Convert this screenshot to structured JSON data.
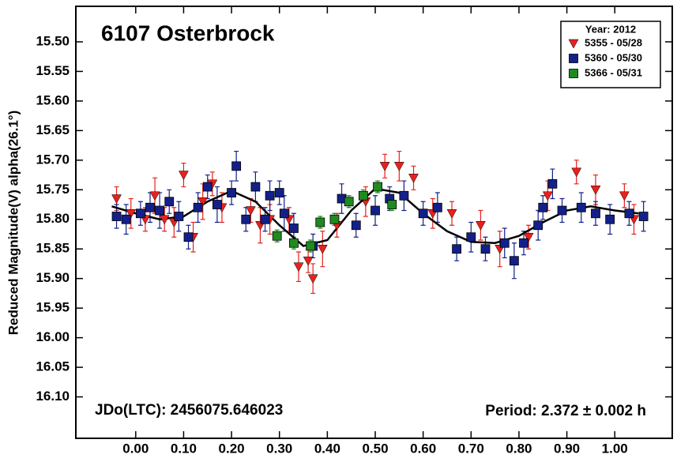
{
  "chart_data": {
    "type": "scatter",
    "title": "6107 Osterbrock",
    "y_label": "Reduced Magnitude(V) alpha(26.1°)",
    "annotations": [
      "JDo(LTC): 2456075.646023",
      "Period: 2.372 ± 0.002 h"
    ],
    "legend_title": "Year: 2012",
    "legend_position": "upper right",
    "xlim": [
      -0.125,
      1.12
    ],
    "ylim": [
      15.44,
      16.17
    ],
    "y_inverted": true,
    "xticks": [
      {
        "value": 0,
        "label": "0.00"
      },
      {
        "value": 0.1,
        "label": "0.10"
      },
      {
        "value": 0.2,
        "label": "0.20"
      },
      {
        "value": 0.3,
        "label": "0.30"
      },
      {
        "value": 0.4,
        "label": "0.40"
      },
      {
        "value": 0.5,
        "label": "0.50"
      },
      {
        "value": 0.6,
        "label": "0.60"
      },
      {
        "value": 0.7,
        "label": "0.70"
      },
      {
        "value": 0.8,
        "label": "0.80"
      },
      {
        "value": 0.9,
        "label": "0.90"
      },
      {
        "value": 1,
        "label": "1.00"
      }
    ],
    "yticks": [
      {
        "value": 15.5,
        "label": "15.50"
      },
      {
        "value": 15.55,
        "label": "15.55"
      },
      {
        "value": 15.6,
        "label": "15.60"
      },
      {
        "value": 15.65,
        "label": "15.65"
      },
      {
        "value": 15.7,
        "label": "15.70"
      },
      {
        "value": 15.75,
        "label": "15.75"
      },
      {
        "value": 15.8,
        "label": "15.80"
      },
      {
        "value": 15.85,
        "label": "15.85"
      },
      {
        "value": 15.9,
        "label": "15.90"
      },
      {
        "value": 15.95,
        "label": "15.95"
      },
      {
        "value": 16,
        "label": "16.00"
      },
      {
        "value": 16.05,
        "label": "16.05"
      },
      {
        "value": 16.1,
        "label": "16.10"
      }
    ],
    "series": [
      {
        "name": "5355 - 05/28",
        "color": "#e8211d",
        "marker": "triangle-down",
        "x": [
          -0.04,
          -0.01,
          0.02,
          0.04,
          0.06,
          0.08,
          0.1,
          0.12,
          0.14,
          0.16,
          0.18,
          0.24,
          0.26,
          0.28,
          0.32,
          0.34,
          0.36,
          0.37,
          0.39,
          0.42,
          0.48,
          0.52,
          0.55,
          0.58,
          0.62,
          0.66,
          0.72,
          0.76,
          0.82,
          0.86,
          0.92,
          0.96,
          1.02,
          1.04
        ],
        "values": [
          15.765,
          15.79,
          15.8,
          15.76,
          15.8,
          15.805,
          15.725,
          15.83,
          15.77,
          15.74,
          15.78,
          15.785,
          15.81,
          15.8,
          15.8,
          15.88,
          15.87,
          15.9,
          15.85,
          15.81,
          15.77,
          15.71,
          15.71,
          15.73,
          15.79,
          15.79,
          15.81,
          15.85,
          15.83,
          15.76,
          15.72,
          15.75,
          15.76,
          15.8
        ],
        "errors": [
          0.02,
          0.025,
          0.02,
          0.03,
          0.02,
          0.025,
          0.02,
          0.025,
          0.03,
          0.02,
          0.025,
          0.02,
          0.03,
          0.025,
          0.02,
          0.025,
          0.02,
          0.025,
          0.03,
          0.02,
          0.025,
          0.02,
          0.025,
          0.02,
          0.025,
          0.02,
          0.025,
          0.03,
          0.02,
          0.025,
          0.02,
          0.025,
          0.02,
          0.025
        ]
      },
      {
        "name": "5360 - 05/30",
        "color": "#13208a",
        "marker": "square",
        "x": [
          -0.04,
          -0.02,
          0.01,
          0.03,
          0.05,
          0.07,
          0.09,
          0.11,
          0.13,
          0.15,
          0.17,
          0.2,
          0.21,
          0.23,
          0.25,
          0.27,
          0.28,
          0.3,
          0.31,
          0.33,
          0.37,
          0.43,
          0.46,
          0.5,
          0.53,
          0.56,
          0.6,
          0.63,
          0.67,
          0.7,
          0.73,
          0.77,
          0.79,
          0.81,
          0.84,
          0.85,
          0.87,
          0.89,
          0.93,
          0.96,
          0.99,
          1.03,
          1.06
        ],
        "values": [
          15.795,
          15.8,
          15.79,
          15.78,
          15.785,
          15.77,
          15.795,
          15.83,
          15.78,
          15.745,
          15.775,
          15.755,
          15.71,
          15.8,
          15.745,
          15.8,
          15.76,
          15.755,
          15.79,
          15.815,
          15.845,
          15.765,
          15.81,
          15.785,
          15.765,
          15.76,
          15.79,
          15.78,
          15.85,
          15.83,
          15.85,
          15.84,
          15.87,
          15.84,
          15.81,
          15.78,
          15.74,
          15.785,
          15.78,
          15.79,
          15.8,
          15.79,
          15.795
        ],
        "errors": [
          0.02,
          0.025,
          0.02,
          0.025,
          0.03,
          0.02,
          0.025,
          0.02,
          0.025,
          0.02,
          0.03,
          0.02,
          0.025,
          0.02,
          0.025,
          0.02,
          0.025,
          0.02,
          0.03,
          0.025,
          0.02,
          0.025,
          0.02,
          0.025,
          0.02,
          0.025,
          0.02,
          0.025,
          0.02,
          0.025,
          0.02,
          0.025,
          0.03,
          0.02,
          0.025,
          0.02,
          0.025,
          0.02,
          0.025,
          0.02,
          0.025,
          0.02,
          0.025
        ]
      },
      {
        "name": "5366 - 05/31",
        "color": "#1f8a1f",
        "marker": "square",
        "x": [
          0.295,
          0.33,
          0.365,
          0.385,
          0.415,
          0.445,
          0.475,
          0.505,
          0.535
        ],
        "values": [
          15.828,
          15.84,
          15.845,
          15.805,
          15.8,
          15.77,
          15.76,
          15.745,
          15.775
        ],
        "errors": [
          0.01,
          0.01,
          0.01,
          0.01,
          0.01,
          0.01,
          0.01,
          0.01,
          0.01
        ]
      }
    ],
    "fit": {
      "color": "#000000",
      "x": [
        -0.05,
        0,
        0.05,
        0.1,
        0.15,
        0.2,
        0.25,
        0.3,
        0.35,
        0.4,
        0.45,
        0.5,
        0.55,
        0.6,
        0.65,
        0.7,
        0.75,
        0.8,
        0.85,
        0.9,
        0.95,
        1,
        1.05
      ],
      "values": [
        15.778,
        15.79,
        15.8,
        15.795,
        15.77,
        15.752,
        15.77,
        15.81,
        15.845,
        15.835,
        15.785,
        15.748,
        15.755,
        15.79,
        15.82,
        15.838,
        15.84,
        15.828,
        15.805,
        15.785,
        15.778,
        15.785,
        15.79
      ]
    }
  }
}
